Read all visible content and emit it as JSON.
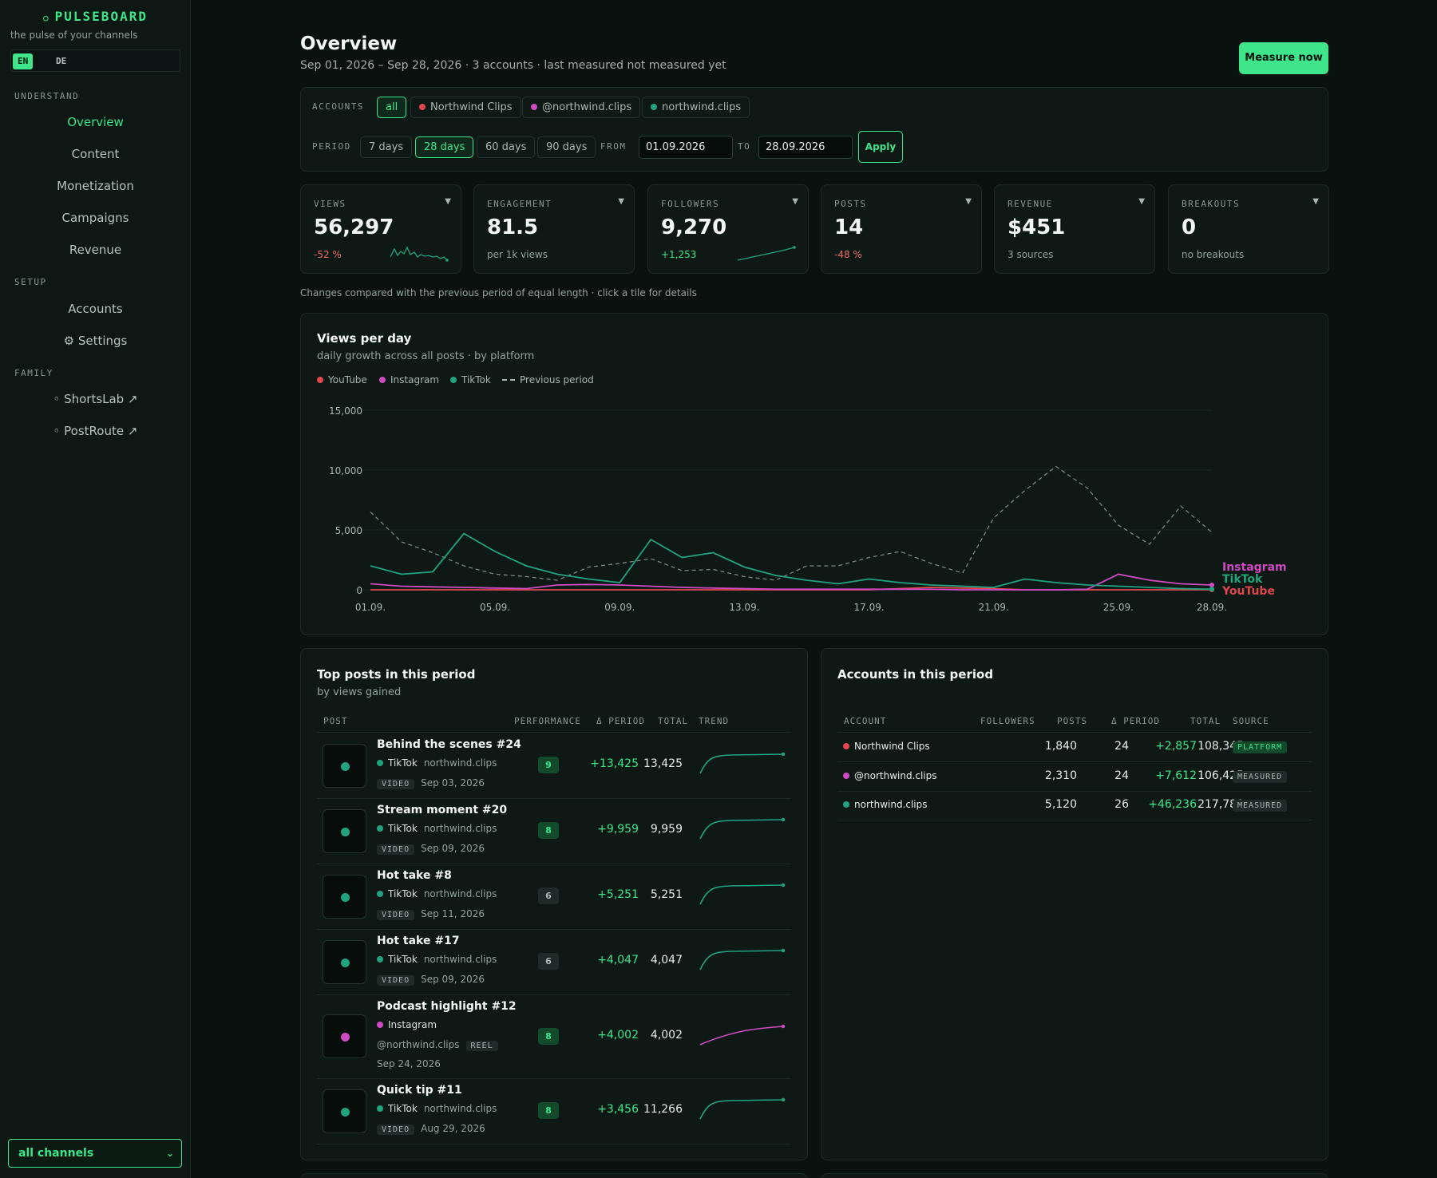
{
  "sidebar": {
    "brand": "PULSEBOARD",
    "tagline": "the pulse of your channels",
    "languages": [
      "EN",
      "DE"
    ],
    "sections": [
      "UNDERSTAND",
      "SETUP",
      "FAMILY"
    ],
    "understand": [
      "Overview",
      "Content",
      "Monetization",
      "Campaigns",
      "Revenue"
    ],
    "setup": [
      "Accounts",
      "⚙ Settings"
    ],
    "family": [
      "◦ ShortsLab ↗",
      "◦ PostRoute ↗"
    ],
    "channel_select": "all channels"
  },
  "header": {
    "title": "Overview",
    "subtitle": "Sep 01, 2026 – Sep 28, 2026 · 3 accounts · last measured not measured yet",
    "measure_label": "Measure now"
  },
  "filters": {
    "accounts_label": "ACCOUNTS",
    "accounts": [
      {
        "label": "all",
        "color": null,
        "active": true
      },
      {
        "label": "Northwind Clips",
        "color": "#e0474f",
        "active": false
      },
      {
        "label": "@northwind.clips",
        "color": "#cf4bc1",
        "active": false
      },
      {
        "label": "northwind.clips",
        "color": "#22a37f",
        "active": false
      }
    ],
    "period_label": "PERIOD",
    "periods": [
      "7 days",
      "28 days",
      "60 days",
      "90 days"
    ],
    "active_period": "28 days",
    "from_label": "FROM",
    "from_value": "01.09.2026",
    "to_label": "TO",
    "to_value": "28.09.2026",
    "apply_label": "Apply"
  },
  "kpis": [
    {
      "label": "VIEWS",
      "value": "56,297",
      "sub": "-52 %",
      "trend": "down"
    },
    {
      "label": "ENGAGEMENT",
      "value": "81.5",
      "sub": "per 1k views",
      "trend": "none"
    },
    {
      "label": "FOLLOWERS",
      "value": "9,270",
      "sub": "+1,253",
      "trend": "up"
    },
    {
      "label": "POSTS",
      "value": "14",
      "sub": "-48 %",
      "trend": "down"
    },
    {
      "label": "REVENUE",
      "value": "$451",
      "sub": "3 sources",
      "trend": "none"
    },
    {
      "label": "BREAKOUTS",
      "value": "0",
      "sub": "no breakouts",
      "trend": "none"
    }
  ],
  "kpi_note": "Changes compared with the previous period of equal length · click a tile for details",
  "chart_data": {
    "type": "line",
    "title": "Views per day",
    "subtitle": "daily growth across all posts · by platform",
    "x": [
      "01.09.",
      "02.09.",
      "03.09.",
      "04.09.",
      "05.09.",
      "06.09.",
      "07.09.",
      "08.09.",
      "09.09.",
      "10.09.",
      "11.09.",
      "12.09.",
      "13.09.",
      "14.09.",
      "15.09.",
      "16.09.",
      "17.09.",
      "18.09.",
      "19.09.",
      "20.09.",
      "21.09.",
      "22.09.",
      "23.09.",
      "24.09.",
      "25.09.",
      "26.09.",
      "27.09.",
      "28.09."
    ],
    "x_ticks": [
      "01.09.",
      "05.09.",
      "09.09.",
      "13.09.",
      "17.09.",
      "21.09.",
      "25.09.",
      "28.09."
    ],
    "y_ticks": [
      "0",
      "5,000",
      "10,000",
      "15,000"
    ],
    "ylim": [
      0,
      15000
    ],
    "grid": true,
    "legend_position": "top-left",
    "series": [
      {
        "name": "YouTube",
        "color": "#e0474f",
        "dashed": false,
        "values": [
          0,
          0,
          0,
          0,
          0,
          0,
          0,
          0,
          0,
          0,
          0,
          0,
          0,
          0,
          0,
          0,
          0,
          100,
          200,
          150,
          100,
          0,
          0,
          0,
          0,
          0,
          0,
          0
        ]
      },
      {
        "name": "Instagram",
        "color": "#cf4bc1",
        "dashed": false,
        "values": [
          500,
          300,
          250,
          200,
          150,
          100,
          400,
          450,
          400,
          300,
          200,
          150,
          100,
          50,
          50,
          50,
          50,
          50,
          50,
          0,
          0,
          0,
          0,
          50,
          1300,
          800,
          500,
          400
        ]
      },
      {
        "name": "TikTok",
        "color": "#22a37f",
        "dashed": false,
        "values": [
          2000,
          1300,
          1500,
          4700,
          3200,
          2000,
          1300,
          900,
          600,
          4200,
          2700,
          3100,
          1900,
          1200,
          800,
          500,
          900,
          600,
          400,
          300,
          200,
          900,
          600,
          400,
          300,
          200,
          100,
          50
        ]
      },
      {
        "name": "Previous period",
        "color": "#7a8783",
        "dashed": true,
        "values": [
          6500,
          4000,
          3100,
          2000,
          1300,
          1100,
          800,
          1900,
          2200,
          2600,
          1600,
          1700,
          1100,
          800,
          2000,
          2000,
          2700,
          3200,
          2200,
          1400,
          6000,
          8300,
          10300,
          8500,
          5400,
          3800,
          7000,
          4800
        ]
      }
    ],
    "end_labels": [
      "Instagram",
      "TikTok",
      "YouTube"
    ]
  },
  "top_posts": {
    "title": "Top posts in this period",
    "subtitle": "by views gained",
    "columns": [
      "POST",
      "PERFORMANCE",
      "Δ PERIOD",
      "TOTAL",
      "TREND"
    ],
    "rows": [
      {
        "title": "Behind the scenes #24",
        "platform": "TikTok",
        "account": "northwind.clips",
        "type": "VIDEO",
        "date": "Sep 03, 2026",
        "score": "9",
        "score_level": "hi",
        "delta": "+13,425",
        "total": "13,425",
        "color": "#22a37f",
        "layout": "tiktok"
      },
      {
        "title": "Stream moment #20",
        "platform": "TikTok",
        "account": "northwind.clips",
        "type": "VIDEO",
        "date": "Sep 09, 2026",
        "score": "8",
        "score_level": "hi",
        "delta": "+9,959",
        "total": "9,959",
        "color": "#22a37f",
        "layout": "tiktok"
      },
      {
        "title": "Hot take #8",
        "platform": "TikTok",
        "account": "northwind.clips",
        "type": "VIDEO",
        "date": "Sep 11, 2026",
        "score": "6",
        "score_level": "mid",
        "delta": "+5,251",
        "total": "5,251",
        "color": "#22a37f",
        "layout": "tiktok"
      },
      {
        "title": "Hot take #17",
        "platform": "TikTok",
        "account": "northwind.clips",
        "type": "VIDEO",
        "date": "Sep 09, 2026",
        "score": "6",
        "score_level": "mid",
        "delta": "+4,047",
        "total": "4,047",
        "color": "#22a37f",
        "layout": "tiktok"
      },
      {
        "title": "Podcast highlight #12",
        "platform": "Instagram",
        "account": "@northwind.clips",
        "type": "REEL",
        "date": "Sep 24, 2026",
        "score": "8",
        "score_level": "hi",
        "delta": "+4,002",
        "total": "4,002",
        "color": "#cf4bc1",
        "layout": "instagram"
      },
      {
        "title": "Quick tip #11",
        "platform": "TikTok",
        "account": "northwind.clips",
        "type": "VIDEO",
        "date": "Aug 29, 2026",
        "score": "8",
        "score_level": "hi",
        "delta": "+3,456",
        "total": "11,266",
        "color": "#22a37f",
        "layout": "tiktok"
      }
    ]
  },
  "accounts_table": {
    "title": "Accounts in this period",
    "columns": [
      "ACCOUNT",
      "FOLLOWERS",
      "POSTS",
      "Δ PERIOD",
      "TOTAL",
      "SOURCE"
    ],
    "rows": [
      {
        "name": "Northwind Clips",
        "color": "#e0474f",
        "followers": "1,840",
        "posts": "24",
        "delta": "+2,857",
        "total": "108,345",
        "source": "PLATFORM"
      },
      {
        "name": "@northwind.clips",
        "color": "#cf4bc1",
        "followers": "2,310",
        "posts": "24",
        "delta": "+7,612",
        "total": "106,425",
        "source": "MEASURED"
      },
      {
        "name": "northwind.clips",
        "color": "#22a37f",
        "followers": "5,120",
        "posts": "26",
        "delta": "+46,236",
        "total": "217,780",
        "source": "MEASURED"
      }
    ]
  }
}
